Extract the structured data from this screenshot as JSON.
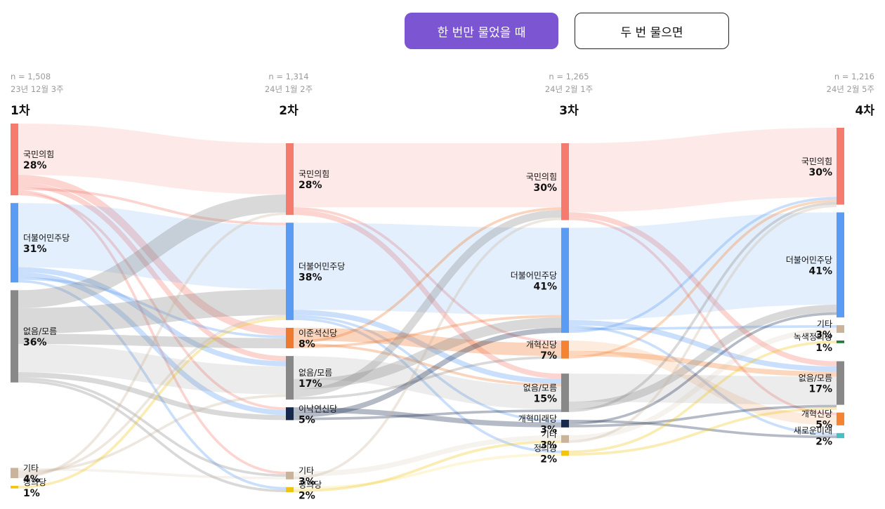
{
  "toggle": {
    "single": "한 번만 물었을 때",
    "double": "두 번 물으면"
  },
  "colors": {
    "ppp": "#f57b6f",
    "dem": "#5a9cf4",
    "none": "#888888",
    "reform_lee": "#ee7a2f",
    "new_reform": "#17284d",
    "etc": "#c9b39a",
    "justice": "#f1c40f",
    "green_justice": "#1c7a3c",
    "new_future": "#49bfc3",
    "reform": "#f58432",
    "reform_future": "#17284d"
  },
  "chart_data": {
    "type": "sankey",
    "waves": [
      {
        "id": "w1",
        "title": "1차",
        "n": "n = 1,508",
        "date": "23년 12월 3주",
        "nodes": [
          {
            "id": "ppp",
            "name": "국민의힘",
            "pct": "28%",
            "value": 28
          },
          {
            "id": "dem",
            "name": "더불어민주당",
            "pct": "31%",
            "value": 31
          },
          {
            "id": "none",
            "name": "없음/모름",
            "pct": "36%",
            "value": 36
          },
          {
            "id": "etc",
            "name": "기타",
            "pct": "4%",
            "value": 4
          },
          {
            "id": "justice",
            "name": "정의당",
            "pct": "1%",
            "value": 1
          }
        ]
      },
      {
        "id": "w2",
        "title": "2차",
        "n": "n = 1,314",
        "date": "24년 1월 2주",
        "nodes": [
          {
            "id": "ppp",
            "name": "국민의힘",
            "pct": "28%",
            "value": 28
          },
          {
            "id": "dem",
            "name": "더불어민주당",
            "pct": "38%",
            "value": 38
          },
          {
            "id": "reform_lee",
            "name": "이준석신당",
            "pct": "8%",
            "value": 8
          },
          {
            "id": "none",
            "name": "없음/모름",
            "pct": "17%",
            "value": 17
          },
          {
            "id": "new_reform",
            "name": "이낙연신당",
            "pct": "5%",
            "value": 5
          },
          {
            "id": "etc",
            "name": "기타",
            "pct": "3%",
            "value": 3
          },
          {
            "id": "justice",
            "name": "정의당",
            "pct": "2%",
            "value": 2
          }
        ]
      },
      {
        "id": "w3",
        "title": "3차",
        "n": "n = 1,265",
        "date": "24년 2월 1주",
        "nodes": [
          {
            "id": "ppp",
            "name": "국민의힘",
            "pct": "30%",
            "value": 30
          },
          {
            "id": "dem",
            "name": "더불어민주당",
            "pct": "41%",
            "value": 41
          },
          {
            "id": "reform",
            "name": "개혁신당",
            "pct": "7%",
            "value": 7
          },
          {
            "id": "none",
            "name": "없음/모름",
            "pct": "15%",
            "value": 15
          },
          {
            "id": "reform_future",
            "name": "개혁미래당",
            "pct": "3%",
            "value": 3
          },
          {
            "id": "etc",
            "name": "기타",
            "pct": "3%",
            "value": 3
          },
          {
            "id": "justice",
            "name": "정의당",
            "pct": "2%",
            "value": 2
          }
        ]
      },
      {
        "id": "w4",
        "title": "4차",
        "n": "n = 1,216",
        "date": "24년 2월 5주",
        "nodes": [
          {
            "id": "ppp",
            "name": "국민의힘",
            "pct": "30%",
            "value": 30
          },
          {
            "id": "dem",
            "name": "더불어민주당",
            "pct": "41%",
            "value": 41
          },
          {
            "id": "etc",
            "name": "기타",
            "pct": "3%",
            "value": 3
          },
          {
            "id": "green_justice",
            "name": "녹색정의당",
            "pct": "1%",
            "value": 1
          },
          {
            "id": "none",
            "name": "없음/모름",
            "pct": "17%",
            "value": 17
          },
          {
            "id": "reform",
            "name": "개혁신당",
            "pct": "5%",
            "value": 5
          },
          {
            "id": "new_future",
            "name": "새로운미래",
            "pct": "2%",
            "value": 2
          }
        ]
      }
    ],
    "flows": [
      {
        "from": [
          "w1",
          "ppp"
        ],
        "to": [
          "w2",
          "ppp"
        ],
        "value": 20
      },
      {
        "from": [
          "w1",
          "ppp"
        ],
        "to": [
          "w2",
          "reform_lee"
        ],
        "value": 3
      },
      {
        "from": [
          "w1",
          "ppp"
        ],
        "to": [
          "w2",
          "none"
        ],
        "value": 2
      },
      {
        "from": [
          "w1",
          "ppp"
        ],
        "to": [
          "w2",
          "dem"
        ],
        "value": 1
      },
      {
        "from": [
          "w1",
          "ppp"
        ],
        "to": [
          "w2",
          "etc"
        ],
        "value": 1
      },
      {
        "from": [
          "w1",
          "ppp"
        ],
        "to": [
          "w2",
          "new_reform"
        ],
        "value": 1
      },
      {
        "from": [
          "w1",
          "dem"
        ],
        "to": [
          "w2",
          "dem"
        ],
        "value": 25
      },
      {
        "from": [
          "w1",
          "dem"
        ],
        "to": [
          "w2",
          "none"
        ],
        "value": 2
      },
      {
        "from": [
          "w1",
          "dem"
        ],
        "to": [
          "w2",
          "new_reform"
        ],
        "value": 2
      },
      {
        "from": [
          "w1",
          "dem"
        ],
        "to": [
          "w2",
          "reform_lee"
        ],
        "value": 1
      },
      {
        "from": [
          "w1",
          "dem"
        ],
        "to": [
          "w2",
          "justice"
        ],
        "value": 1
      },
      {
        "from": [
          "w1",
          "none"
        ],
        "to": [
          "w2",
          "ppp"
        ],
        "value": 7
      },
      {
        "from": [
          "w1",
          "none"
        ],
        "to": [
          "w2",
          "dem"
        ],
        "value": 10
      },
      {
        "from": [
          "w1",
          "none"
        ],
        "to": [
          "w2",
          "reform_lee"
        ],
        "value": 4
      },
      {
        "from": [
          "w1",
          "none"
        ],
        "to": [
          "w2",
          "none"
        ],
        "value": 11
      },
      {
        "from": [
          "w1",
          "none"
        ],
        "to": [
          "w2",
          "new_reform"
        ],
        "value": 2
      },
      {
        "from": [
          "w1",
          "none"
        ],
        "to": [
          "w2",
          "etc"
        ],
        "value": 1
      },
      {
        "from": [
          "w1",
          "none"
        ],
        "to": [
          "w2",
          "justice"
        ],
        "value": 1
      },
      {
        "from": [
          "w1",
          "etc"
        ],
        "to": [
          "w2",
          "etc"
        ],
        "value": 1
      },
      {
        "from": [
          "w1",
          "etc"
        ],
        "to": [
          "w2",
          "none"
        ],
        "value": 1
      },
      {
        "from": [
          "w1",
          "etc"
        ],
        "to": [
          "w2",
          "dem"
        ],
        "value": 1
      },
      {
        "from": [
          "w1",
          "etc"
        ],
        "to": [
          "w2",
          "ppp"
        ],
        "value": 1
      },
      {
        "from": [
          "w1",
          "justice"
        ],
        "to": [
          "w2",
          "dem"
        ],
        "value": 1
      },
      {
        "from": [
          "w2",
          "ppp"
        ],
        "to": [
          "w3",
          "ppp"
        ],
        "value": 25
      },
      {
        "from": [
          "w2",
          "ppp"
        ],
        "to": [
          "w3",
          "reform"
        ],
        "value": 1
      },
      {
        "from": [
          "w2",
          "ppp"
        ],
        "to": [
          "w3",
          "none"
        ],
        "value": 2
      },
      {
        "from": [
          "w2",
          "dem"
        ],
        "to": [
          "w3",
          "dem"
        ],
        "value": 34
      },
      {
        "from": [
          "w2",
          "dem"
        ],
        "to": [
          "w3",
          "none"
        ],
        "value": 2
      },
      {
        "from": [
          "w2",
          "dem"
        ],
        "to": [
          "w3",
          "reform_future"
        ],
        "value": 1
      },
      {
        "from": [
          "w2",
          "dem"
        ],
        "to": [
          "w3",
          "justice"
        ],
        "value": 1
      },
      {
        "from": [
          "w2",
          "reform_lee"
        ],
        "to": [
          "w3",
          "reform"
        ],
        "value": 5
      },
      {
        "from": [
          "w2",
          "reform_lee"
        ],
        "to": [
          "w3",
          "ppp"
        ],
        "value": 1
      },
      {
        "from": [
          "w2",
          "reform_lee"
        ],
        "to": [
          "w3",
          "none"
        ],
        "value": 1
      },
      {
        "from": [
          "w2",
          "reform_lee"
        ],
        "to": [
          "w3",
          "dem"
        ],
        "value": 1
      },
      {
        "from": [
          "w2",
          "none"
        ],
        "to": [
          "w3",
          "none"
        ],
        "value": 9
      },
      {
        "from": [
          "w2",
          "none"
        ],
        "to": [
          "w3",
          "dem"
        ],
        "value": 4
      },
      {
        "from": [
          "w2",
          "none"
        ],
        "to": [
          "w3",
          "ppp"
        ],
        "value": 3
      },
      {
        "from": [
          "w2",
          "none"
        ],
        "to": [
          "w3",
          "reform"
        ],
        "value": 1
      },
      {
        "from": [
          "w2",
          "new_reform"
        ],
        "to": [
          "w3",
          "reform_future"
        ],
        "value": 2
      },
      {
        "from": [
          "w2",
          "new_reform"
        ],
        "to": [
          "w3",
          "dem"
        ],
        "value": 2
      },
      {
        "from": [
          "w2",
          "new_reform"
        ],
        "to": [
          "w3",
          "none"
        ],
        "value": 1
      },
      {
        "from": [
          "w2",
          "etc"
        ],
        "to": [
          "w3",
          "etc"
        ],
        "value": 2
      },
      {
        "from": [
          "w2",
          "etc"
        ],
        "to": [
          "w3",
          "ppp"
        ],
        "value": 1
      },
      {
        "from": [
          "w2",
          "justice"
        ],
        "to": [
          "w3",
          "justice"
        ],
        "value": 1
      },
      {
        "from": [
          "w2",
          "justice"
        ],
        "to": [
          "w3",
          "etc"
        ],
        "value": 1
      },
      {
        "from": [
          "w3",
          "ppp"
        ],
        "to": [
          "w4",
          "ppp"
        ],
        "value": 27
      },
      {
        "from": [
          "w3",
          "ppp"
        ],
        "to": [
          "w4",
          "none"
        ],
        "value": 2
      },
      {
        "from": [
          "w3",
          "ppp"
        ],
        "to": [
          "w4",
          "reform"
        ],
        "value": 1
      },
      {
        "from": [
          "w3",
          "dem"
        ],
        "to": [
          "w4",
          "dem"
        ],
        "value": 36
      },
      {
        "from": [
          "w3",
          "dem"
        ],
        "to": [
          "w4",
          "none"
        ],
        "value": 2
      },
      {
        "from": [
          "w3",
          "dem"
        ],
        "to": [
          "w4",
          "new_future"
        ],
        "value": 1
      },
      {
        "from": [
          "w3",
          "dem"
        ],
        "to": [
          "w4",
          "etc"
        ],
        "value": 1
      },
      {
        "from": [
          "w3",
          "dem"
        ],
        "to": [
          "w4",
          "ppp"
        ],
        "value": 1
      },
      {
        "from": [
          "w3",
          "reform"
        ],
        "to": [
          "w4",
          "reform"
        ],
        "value": 4
      },
      {
        "from": [
          "w3",
          "reform"
        ],
        "to": [
          "w4",
          "none"
        ],
        "value": 2
      },
      {
        "from": [
          "w3",
          "reform"
        ],
        "to": [
          "w4",
          "ppp"
        ],
        "value": 1
      },
      {
        "from": [
          "w3",
          "none"
        ],
        "to": [
          "w4",
          "none"
        ],
        "value": 11
      },
      {
        "from": [
          "w3",
          "none"
        ],
        "to": [
          "w4",
          "dem"
        ],
        "value": 3
      },
      {
        "from": [
          "w3",
          "none"
        ],
        "to": [
          "w4",
          "ppp"
        ],
        "value": 1
      },
      {
        "from": [
          "w3",
          "reform_future"
        ],
        "to": [
          "w4",
          "new_future"
        ],
        "value": 1
      },
      {
        "from": [
          "w3",
          "reform_future"
        ],
        "to": [
          "w4",
          "dem"
        ],
        "value": 1
      },
      {
        "from": [
          "w3",
          "reform_future"
        ],
        "to": [
          "w4",
          "none"
        ],
        "value": 1
      },
      {
        "from": [
          "w3",
          "etc"
        ],
        "to": [
          "w4",
          "etc"
        ],
        "value": 2
      },
      {
        "from": [
          "w3",
          "etc"
        ],
        "to": [
          "w4",
          "ppp"
        ],
        "value": 1
      },
      {
        "from": [
          "w3",
          "justice"
        ],
        "to": [
          "w4",
          "green_justice"
        ],
        "value": 1
      },
      {
        "from": [
          "w3",
          "justice"
        ],
        "to": [
          "w4",
          "none"
        ],
        "value": 1
      }
    ]
  }
}
